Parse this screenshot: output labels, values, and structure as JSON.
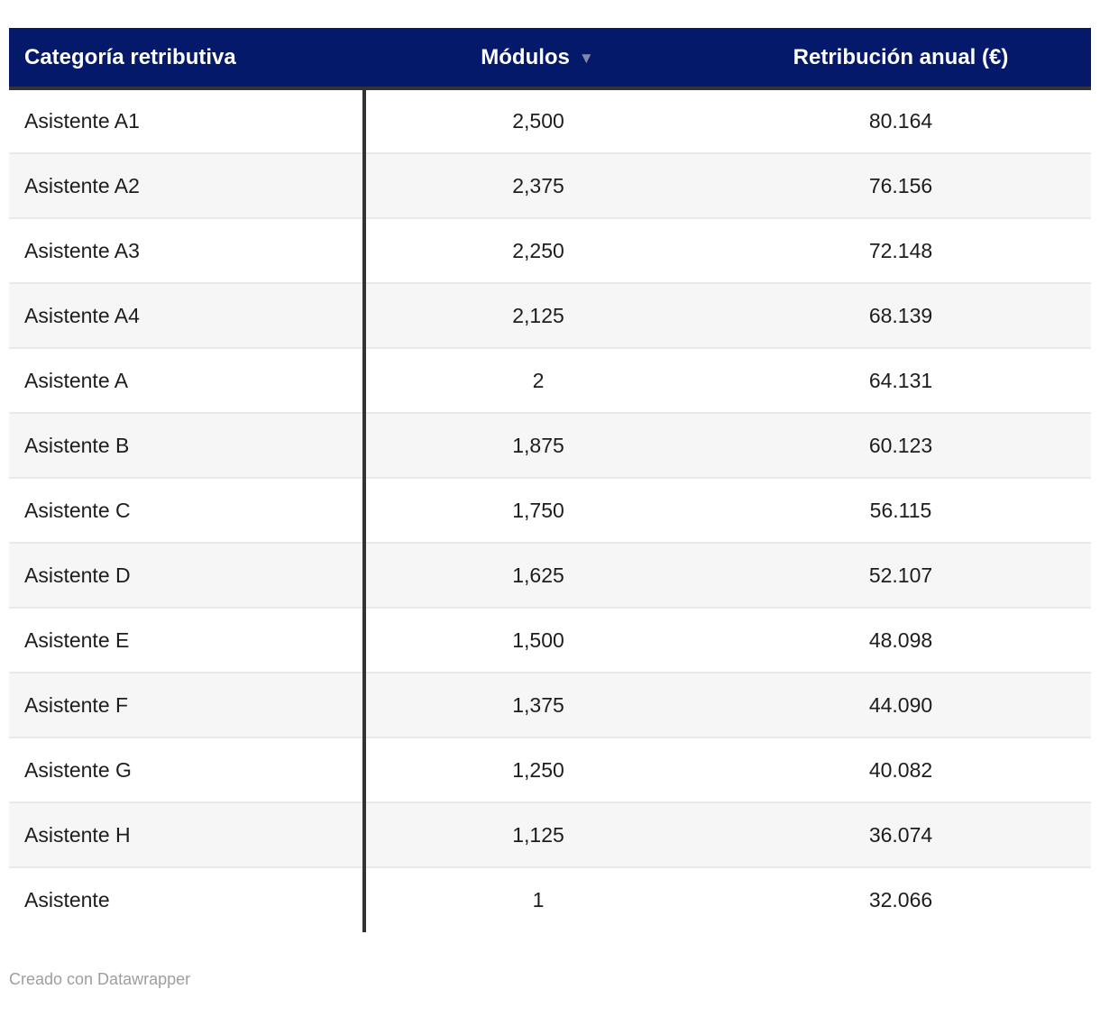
{
  "chart_data": {
    "type": "table",
    "columns": [
      "Categoría retributiva",
      "Módulos",
      "Retribución anual (€)"
    ],
    "rows": [
      [
        "Asistente A1",
        "2,500",
        "80.164"
      ],
      [
        "Asistente A2",
        "2,375",
        "76.156"
      ],
      [
        "Asistente A3",
        "2,250",
        "72.148"
      ],
      [
        "Asistente A4",
        "2,125",
        "68.139"
      ],
      [
        "Asistente A",
        "2",
        "64.131"
      ],
      [
        "Asistente B",
        "1,875",
        "60.123"
      ],
      [
        "Asistente C",
        "1,750",
        "56.115"
      ],
      [
        "Asistente D",
        "1,625",
        "52.107"
      ],
      [
        "Asistente E",
        "1,500",
        "48.098"
      ],
      [
        "Asistente F",
        "1,375",
        "44.090"
      ],
      [
        "Asistente G",
        "1,250",
        "40.082"
      ],
      [
        "Asistente H",
        "1,125",
        "36.074"
      ],
      [
        "Asistente",
        "1",
        "32.066"
      ]
    ],
    "sort": {
      "column": "Módulos",
      "direction": "desc"
    },
    "layout_hints": {
      "striped_rows": true,
      "column_divider_after": "Categoría retributiva"
    }
  },
  "ui": {
    "sort_indicator": "▼"
  },
  "footer": {
    "credit": "Creado con Datawrapper"
  },
  "colors": {
    "header_bg": "#05196b",
    "header_text": "#ffffff",
    "divider": "#333333",
    "row_alt_bg": "#f6f6f6",
    "row_separator": "#e9e9e9",
    "body_text": "#1d1d1d",
    "sort_arrow": "#7f89ad",
    "credit_text": "#9e9e9e"
  }
}
